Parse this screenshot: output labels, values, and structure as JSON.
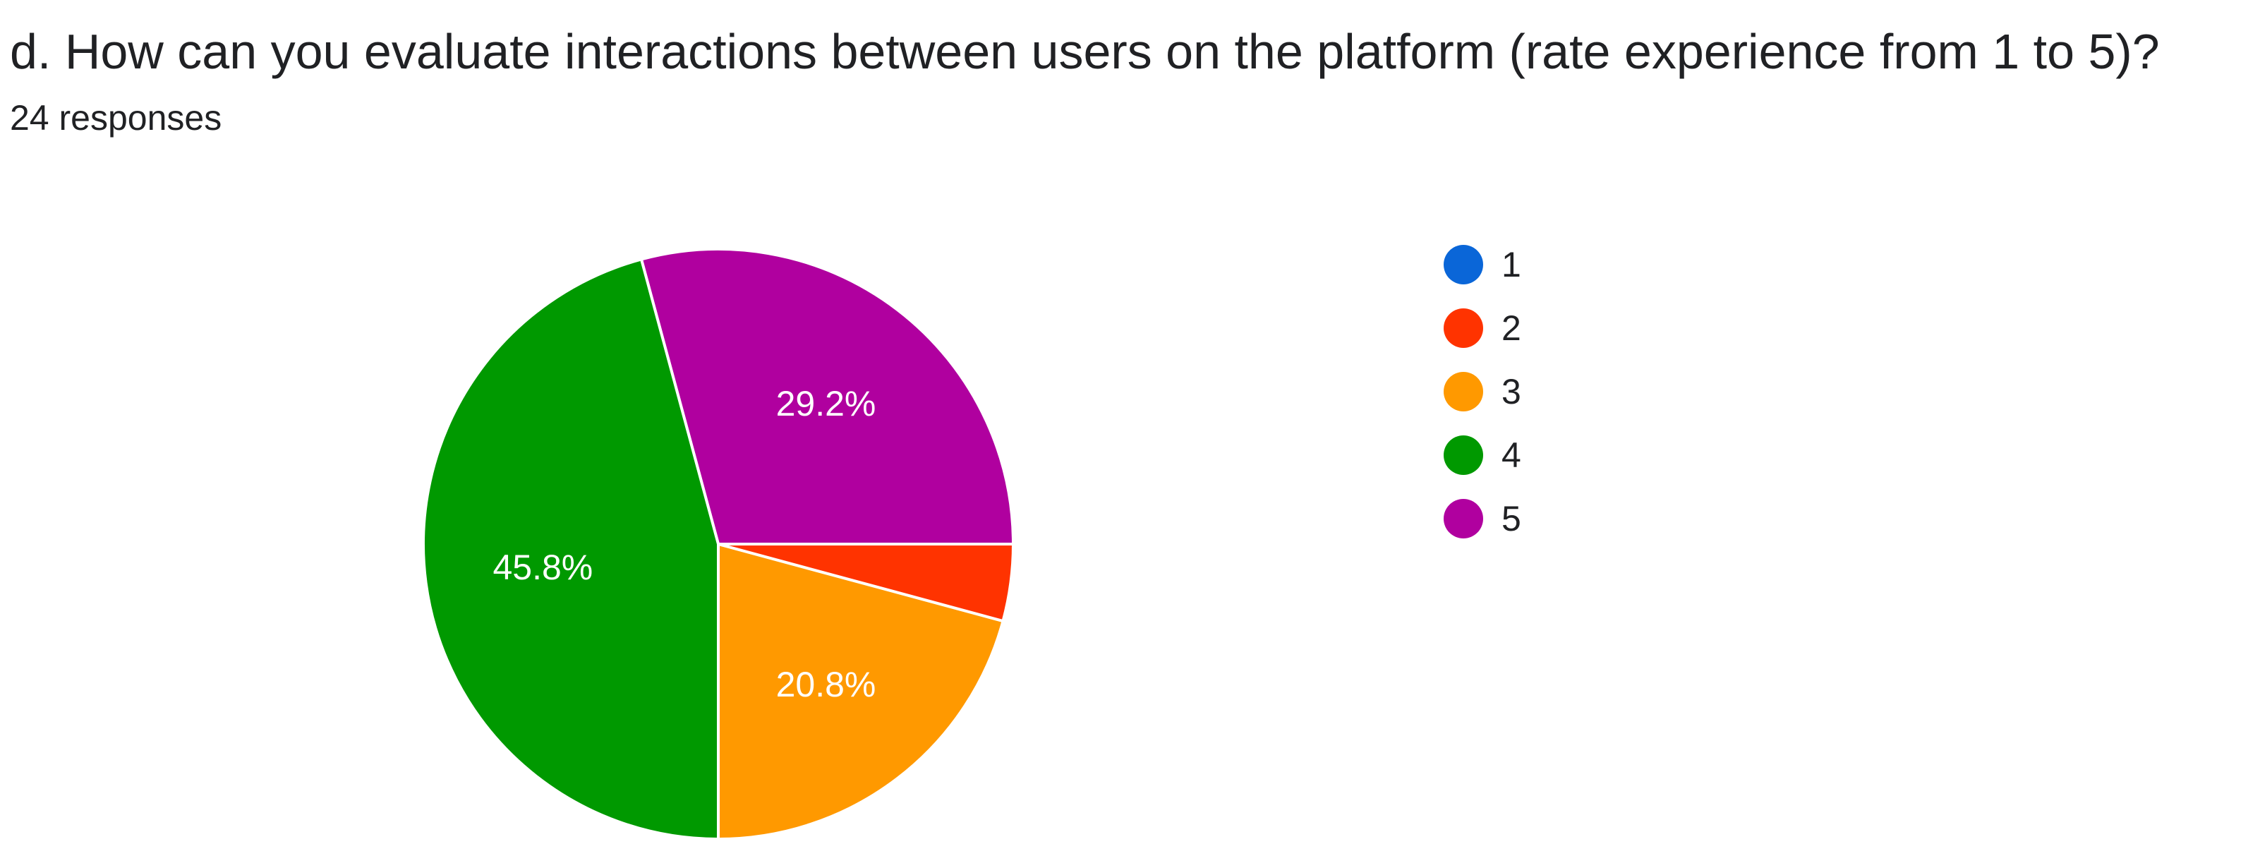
{
  "question": {
    "title": "d. How can you evaluate interactions between users on the platform (rate experience from 1 to 5)?",
    "responses_text": "24 responses"
  },
  "chart_data": {
    "type": "pie",
    "title": "d. How can you evaluate interactions between users on the platform (rate experience from 1 to 5)?",
    "total_responses": 24,
    "legend_position": "right",
    "slices": [
      {
        "label": "1",
        "value": 0,
        "percent_label": "",
        "color": "#0a66d8"
      },
      {
        "label": "2",
        "value": 4.2,
        "percent_label": "",
        "color": "#ff3300"
      },
      {
        "label": "3",
        "value": 20.8,
        "percent_label": "20.8%",
        "color": "#ff9900"
      },
      {
        "label": "4",
        "value": 45.8,
        "percent_label": "45.8%",
        "color": "#009900"
      },
      {
        "label": "5",
        "value": 29.2,
        "percent_label": "29.2%",
        "color": "#b0009f"
      }
    ]
  }
}
